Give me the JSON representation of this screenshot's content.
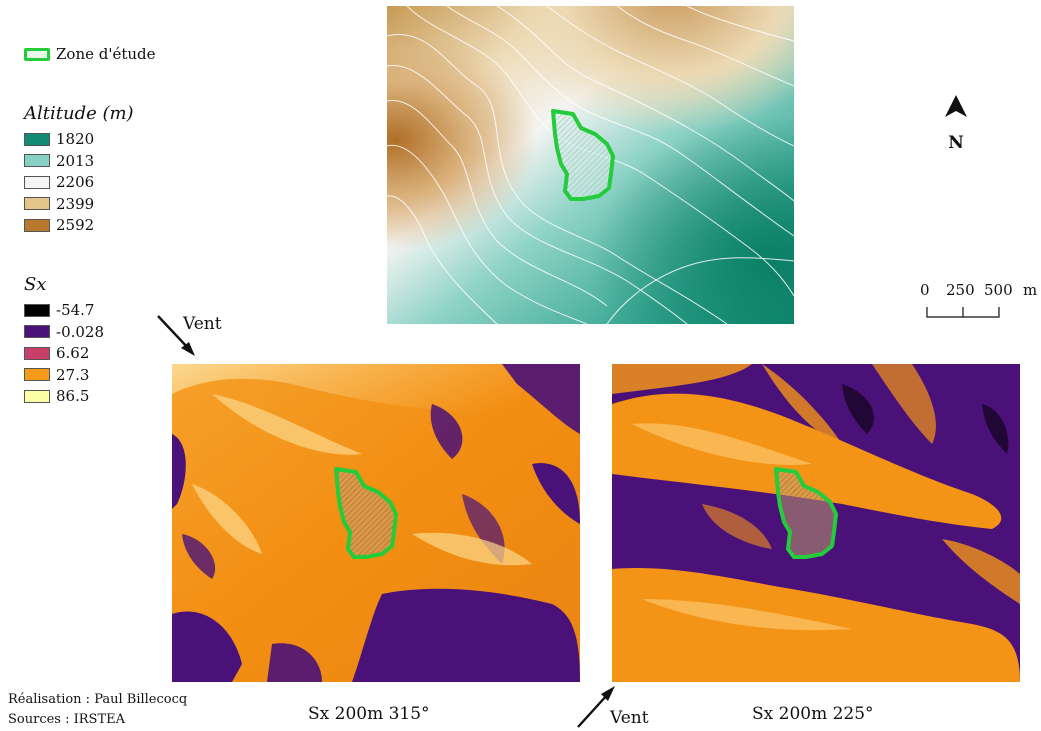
{
  "legend": {
    "study_zone_label": "Zone d'étude",
    "altitude_title": "Altitude (m)",
    "altitude_classes": [
      {
        "label": "1820",
        "color": "#138a74"
      },
      {
        "label": "2013",
        "color": "#86d0c4"
      },
      {
        "label": "2206",
        "color": "#f5f5f5"
      },
      {
        "label": "2399",
        "color": "#e5c68a"
      },
      {
        "label": "2592",
        "color": "#b8792f"
      }
    ],
    "sx_title": "Sx",
    "sx_classes": [
      {
        "label": "-54.7",
        "color": "#000000"
      },
      {
        "label": "-0.028",
        "color": "#4a1178"
      },
      {
        "label": "6.62",
        "color": "#c8406a"
      },
      {
        "label": "27.3",
        "color": "#f79a1a"
      },
      {
        "label": "86.5",
        "color": "#fdffa8"
      }
    ]
  },
  "north": {
    "label": "N"
  },
  "scale_bar": {
    "ticks": [
      "0",
      "250",
      "500"
    ],
    "unit": "m"
  },
  "maps": {
    "dem": {
      "name": "altitude-map"
    },
    "sx315": {
      "caption": "Sx 200m 315°",
      "wind_label": "Vent"
    },
    "sx225": {
      "caption": "Sx 200m 225°",
      "wind_label": "Vent"
    }
  },
  "credits": {
    "author": "Réalisation : Paul Billecocq",
    "sources": "Sources : IRSTEA"
  },
  "colors": {
    "study_zone": "#22cc3a",
    "contour": "#ffffff"
  }
}
